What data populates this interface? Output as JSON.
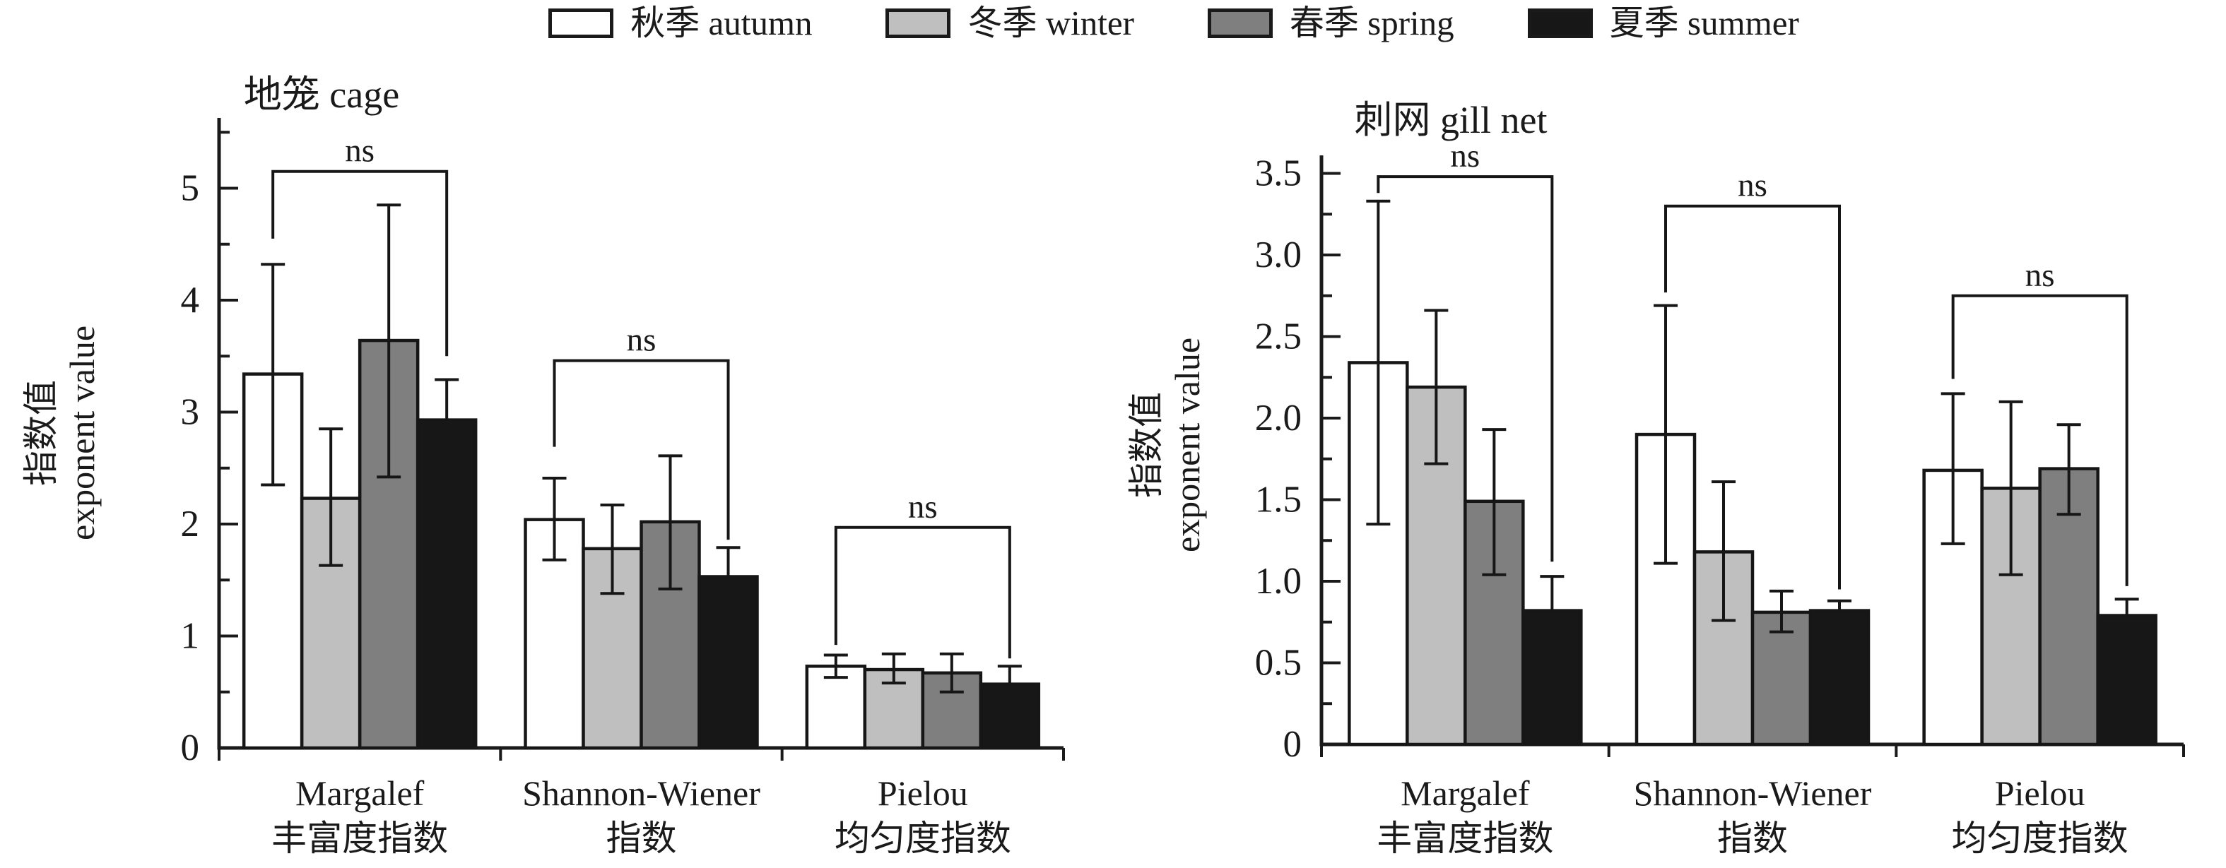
{
  "legend": {
    "items": [
      {
        "name": "autumn",
        "label": "秋季 autumn",
        "color": "#ffffff"
      },
      {
        "name": "winter",
        "label": "冬季 winter",
        "color": "#bfbfbf"
      },
      {
        "name": "spring",
        "label": "春季 spring",
        "color": "#7f7f7f"
      },
      {
        "name": "summer",
        "label": "夏季 summer",
        "color": "#171717"
      }
    ]
  },
  "chart_data": [
    {
      "type": "bar",
      "panel": "cage",
      "title": "地笼 cage",
      "ylabel_cn": "指数值",
      "ylabel_en": "exponent value",
      "ylim": [
        0,
        5.63
      ],
      "ytick_values": [
        0,
        1,
        2,
        3,
        4,
        5
      ],
      "ytick_labels": [
        "0",
        "1",
        "2",
        "3",
        "4",
        "5"
      ],
      "yminor_step": 0.5,
      "grid": false,
      "categories": [
        {
          "en": "Margalef",
          "cn": "丰富度指数"
        },
        {
          "en": "Shannon-Wiener",
          "cn": "指数"
        },
        {
          "en": "Pielou",
          "cn": "均匀度指数"
        }
      ],
      "series": [
        {
          "name": "autumn",
          "color": "#ffffff",
          "values": [
            3.34,
            2.04,
            0.73
          ],
          "err_up": [
            0.98,
            0.37,
            0.1
          ],
          "err_dn": [
            0.99,
            0.36,
            0.1
          ]
        },
        {
          "name": "winter",
          "color": "#bfbfbf",
          "values": [
            2.23,
            1.78,
            0.7
          ],
          "err_up": [
            0.62,
            0.39,
            0.14
          ],
          "err_dn": [
            0.6,
            0.4,
            0.12
          ]
        },
        {
          "name": "spring",
          "color": "#7f7f7f",
          "values": [
            3.64,
            2.02,
            0.67
          ],
          "err_up": [
            1.21,
            0.59,
            0.17
          ],
          "err_dn": [
            1.22,
            0.6,
            0.17
          ]
        },
        {
          "name": "summer",
          "color": "#171717",
          "values": [
            2.93,
            1.53,
            0.57
          ],
          "err_up": [
            0.36,
            0.26,
            0.16
          ],
          "err_dn": [
            null,
            null,
            null
          ]
        }
      ],
      "significance_brackets": [
        {
          "label": "ns",
          "category": 0,
          "y": 5.15,
          "left_drop_to": 4.55,
          "right_drop_to": 3.5
        },
        {
          "label": "ns",
          "category": 1,
          "y": 3.46,
          "left_drop_to": 2.69,
          "right_drop_to": 1.86
        },
        {
          "label": "ns",
          "category": 2,
          "y": 1.97,
          "left_drop_to": 0.92,
          "right_drop_to": 0.8
        }
      ]
    },
    {
      "type": "bar",
      "panel": "gill net",
      "title": "刺网 gill net",
      "ylabel_cn": "指数值",
      "ylabel_en": "exponent value",
      "ylim": [
        0,
        3.61
      ],
      "ytick_values": [
        0,
        0.5,
        1.0,
        1.5,
        2.0,
        2.5,
        3.0,
        3.5
      ],
      "ytick_labels": [
        "0",
        "0.5",
        "1.0",
        "1.5",
        "2.0",
        "2.5",
        "3.0",
        "3.5"
      ],
      "yminor_step": 0.25,
      "grid": false,
      "categories": [
        {
          "en": "Margalef",
          "cn": "丰富度指数"
        },
        {
          "en": "Shannon-Wiener",
          "cn": "指数"
        },
        {
          "en": "Pielou",
          "cn": "均匀度指数"
        }
      ],
      "series": [
        {
          "name": "autumn",
          "color": "#ffffff",
          "values": [
            2.34,
            1.9,
            1.68
          ],
          "err_up": [
            0.99,
            0.79,
            0.47
          ],
          "err_dn": [
            0.99,
            0.79,
            0.45
          ]
        },
        {
          "name": "winter",
          "color": "#bfbfbf",
          "values": [
            2.19,
            1.18,
            1.57
          ],
          "err_up": [
            0.47,
            0.43,
            0.53
          ],
          "err_dn": [
            0.47,
            0.42,
            0.53
          ]
        },
        {
          "name": "spring",
          "color": "#7f7f7f",
          "values": [
            1.49,
            0.81,
            1.69
          ],
          "err_up": [
            0.44,
            0.13,
            0.27
          ],
          "err_dn": [
            0.45,
            0.12,
            0.28
          ]
        },
        {
          "name": "summer",
          "color": "#171717",
          "values": [
            0.82,
            0.82,
            0.79
          ],
          "err_up": [
            0.21,
            0.06,
            0.1
          ],
          "err_dn": [
            null,
            null,
            null
          ]
        }
      ],
      "significance_brackets": [
        {
          "label": "ns",
          "category": 0,
          "y": 3.48,
          "left_drop_to": 3.38,
          "right_drop_to": 1.12
        },
        {
          "label": "ns",
          "category": 1,
          "y": 3.3,
          "left_drop_to": 2.77,
          "right_drop_to": 0.95
        },
        {
          "label": "ns",
          "category": 2,
          "y": 2.75,
          "left_drop_to": 2.24,
          "right_drop_to": 0.97
        }
      ]
    }
  ]
}
